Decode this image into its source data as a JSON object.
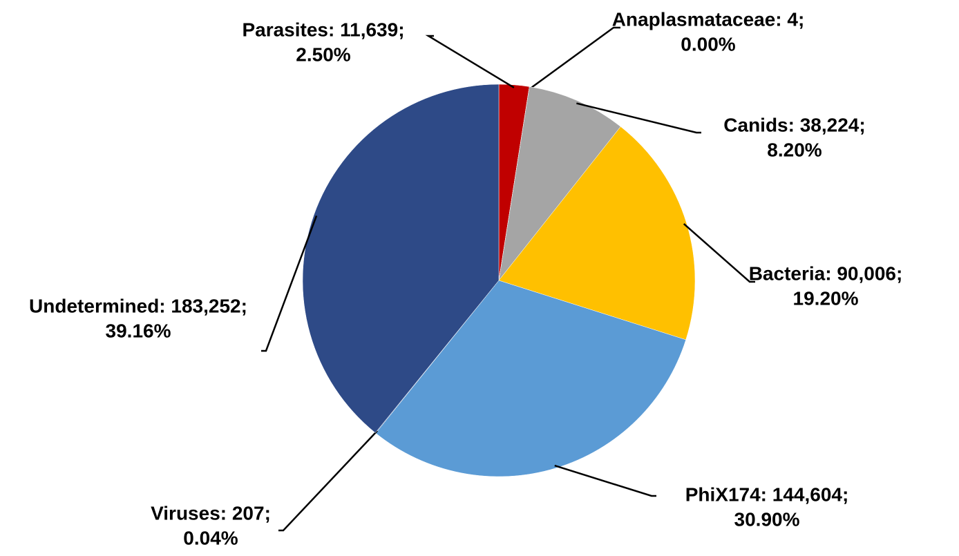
{
  "chart_data": {
    "type": "pie",
    "values": [
      11639,
      4,
      38224,
      90006,
      144604,
      207,
      183252
    ],
    "value_labels": [
      [
        "Parasites: 11,639;",
        "2.50%"
      ],
      [
        "Anaplasmataceae: 4;",
        "0.00%"
      ],
      [
        "Canids: 38,224;",
        "8.20%"
      ],
      [
        "Bacteria: 90,006;",
        "19.20%"
      ],
      [
        "PhiX174: 144,604;",
        "30.90%"
      ],
      [
        "Viruses: 207;",
        "0.04%"
      ],
      [
        "Undetermined: 183,252;",
        "39.16%"
      ]
    ],
    "colors": [
      "#c00000",
      "#7f7f7f",
      "#a5a5a5",
      "#ffc000",
      "#5b9bd5",
      "#2f5597",
      "#2e4a87"
    ]
  }
}
